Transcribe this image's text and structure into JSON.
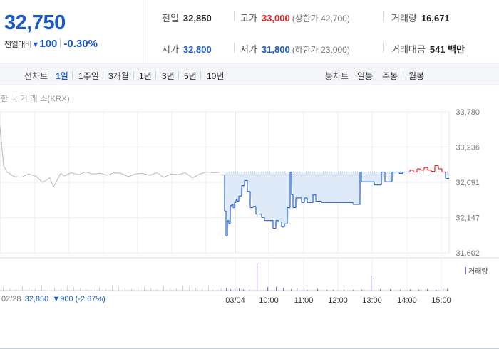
{
  "summary": {
    "price": "32,750",
    "diff_label": "전일대비",
    "diff_arrow": "▼",
    "diff_value": "100",
    "diff_rate": "-0.30%",
    "prev_close_label": "전일",
    "prev_close": "32,850",
    "high_label": "고가",
    "high": "33,000",
    "upper_limit": "(상한가 42,700)",
    "volume_label": "거래량",
    "volume": "16,671",
    "open_label": "시가",
    "open": "32,800",
    "low_label": "저가",
    "low": "31,800",
    "lower_limit": "(하한가 23,000)",
    "amount_label": "거래대금",
    "amount": "541",
    "amount_unit": "백만"
  },
  "period_bar": {
    "line_label": "선차트",
    "line_items": [
      "1일",
      "1주일",
      "3개월",
      "1년",
      "3년",
      "5년",
      "10년"
    ],
    "active": "1일",
    "candle_label": "봉차트",
    "candle_items": [
      "일봉",
      "주봉",
      "월봉"
    ]
  },
  "source_label": "한 국 거 래 소(KRX)",
  "footer": {
    "prev_date": "02/28",
    "prev_price": "32,850",
    "prev_change": "▼900 (-2.67%)"
  },
  "volume_legend": "거래량",
  "colors": {
    "up": "#e0201e",
    "down": "#1a5ac8",
    "prev_day": "#b8b8b8",
    "fill": "#dbe8f8",
    "volume": "#8b6bd1"
  },
  "chart_data": {
    "type": "line",
    "ylim": [
      31602,
      33780
    ],
    "y_ticks": [
      "33,780",
      "33,236",
      "32,691",
      "32,147",
      "31,602"
    ],
    "x_ticks": [
      "03/04",
      "10:00",
      "11:00",
      "12:00",
      "13:00",
      "14:00",
      "15:00"
    ],
    "baseline": 32850,
    "prev_day": {
      "name": "02/28",
      "x": [
        0,
        5,
        10,
        20,
        30,
        40,
        50,
        60,
        70,
        75,
        80,
        85,
        90,
        100,
        110,
        120,
        130,
        140,
        150,
        160,
        170,
        180,
        190,
        200,
        210,
        220,
        230,
        240,
        250,
        260,
        270,
        280,
        290,
        300,
        310,
        315
      ],
      "y": [
        33550,
        32950,
        32850,
        32780,
        32770,
        32820,
        32790,
        32690,
        32760,
        32620,
        32720,
        32830,
        32790,
        32840,
        32810,
        32850,
        32820,
        32830,
        32800,
        32840,
        32830,
        32780,
        32820,
        32830,
        32800,
        32840,
        32770,
        32820,
        32810,
        32840,
        32760,
        32820,
        32850,
        32840,
        32850,
        32850
      ]
    },
    "today": {
      "x": [
        0,
        2,
        4,
        6,
        8,
        10,
        12,
        14,
        16,
        18,
        20,
        24,
        28,
        32,
        36,
        40,
        44,
        48,
        52,
        56,
        60,
        64,
        68,
        72,
        76,
        80,
        84,
        88,
        92,
        94,
        96,
        98,
        100,
        104,
        108,
        112,
        116,
        120,
        124,
        128,
        132,
        136,
        140,
        150,
        160,
        170,
        180,
        186,
        190,
        192,
        194,
        196,
        200,
        210,
        220,
        225,
        230,
        235,
        240,
        245,
        250,
        255,
        260,
        265,
        270,
        275,
        280,
        285,
        290,
        295,
        300,
        305,
        310,
        315
      ],
      "y": [
        32800,
        32250,
        31860,
        32100,
        32050,
        32330,
        32350,
        32300,
        32380,
        32420,
        32400,
        32480,
        32640,
        32720,
        32550,
        32300,
        32320,
        32200,
        32200,
        32150,
        32100,
        32100,
        32100,
        31980,
        32100,
        32080,
        32000,
        32050,
        32300,
        32850,
        32500,
        32300,
        32300,
        32450,
        32450,
        32380,
        32450,
        32380,
        32380,
        32500,
        32400,
        32400,
        32380,
        32380,
        32380,
        32380,
        32380,
        32350,
        32350,
        32850,
        32700,
        32700,
        32700,
        32700,
        32650,
        32850,
        32700,
        32700,
        32850,
        32850,
        32830,
        32850,
        32850,
        32880,
        32850,
        32900,
        32880,
        32920,
        32880,
        32860,
        32950,
        32900,
        32850,
        32750
      ]
    },
    "volume": {
      "x": [
        2,
        8,
        14,
        20,
        26,
        34,
        45,
        60,
        72,
        82,
        93,
        101,
        115,
        130,
        143,
        152,
        167,
        180,
        192,
        205,
        218,
        232,
        246,
        260,
        272,
        284,
        296,
        306,
        312
      ],
      "y": [
        120,
        60,
        80,
        100,
        45,
        60,
        1250,
        160,
        170,
        120,
        70,
        120,
        45,
        75,
        40,
        40,
        65,
        30,
        45,
        670,
        60,
        65,
        45,
        55,
        45,
        70,
        35,
        95,
        80
      ]
    }
  }
}
